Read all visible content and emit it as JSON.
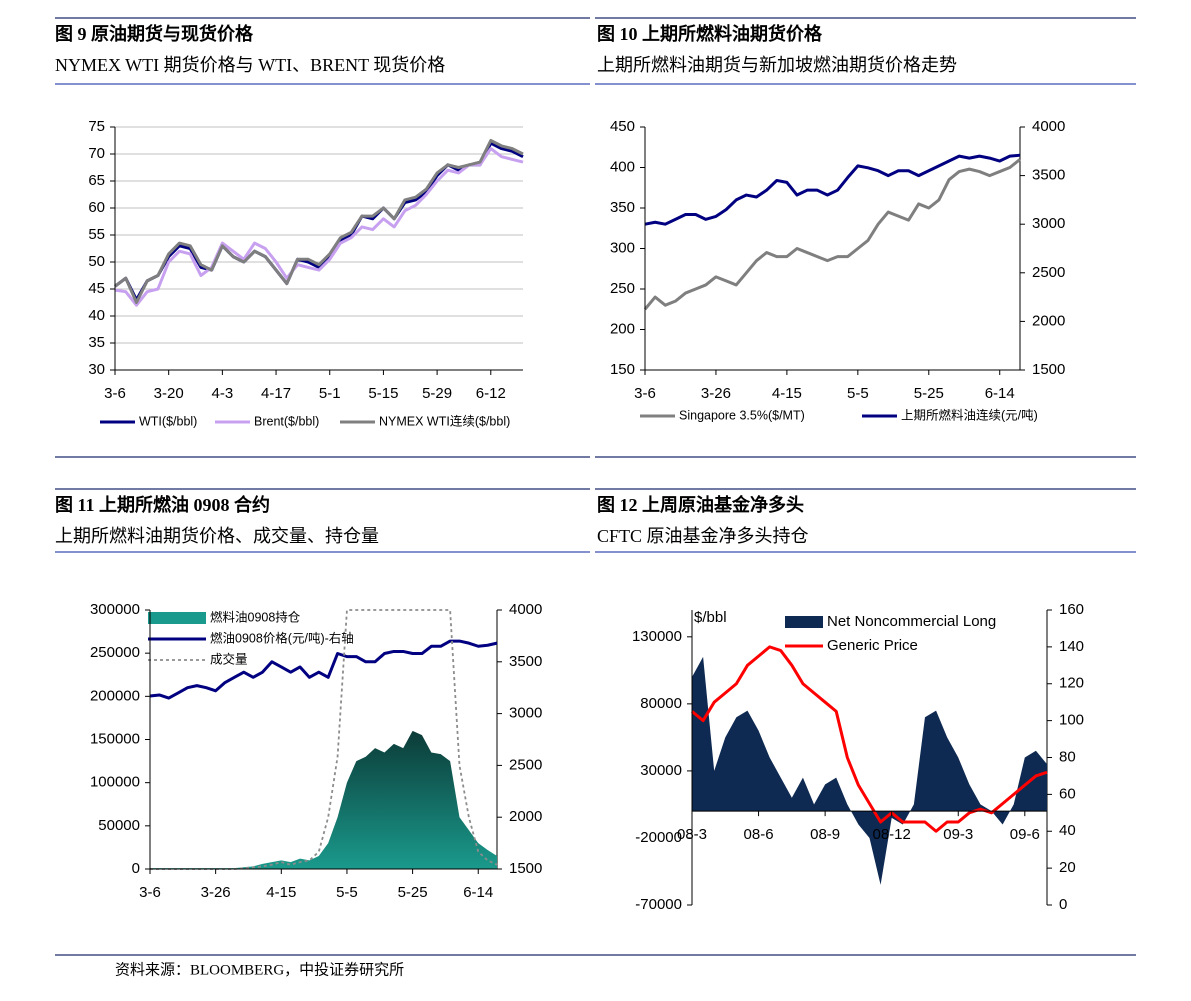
{
  "source": "资料来源：BLOOMBERG，中投证券研究所",
  "chart_data": [
    {
      "type": "line",
      "title": "图 9  原油期货与现货价格",
      "subtitle": "NYMEX WTI 期货价格与 WTI、BRENT 现货价格",
      "categories": [
        "3-6",
        null,
        null,
        null,
        null,
        "3-20",
        null,
        null,
        null,
        null,
        "4-3",
        null,
        null,
        null,
        null,
        "4-17",
        null,
        null,
        null,
        null,
        "5-1",
        null,
        null,
        null,
        null,
        "5-15",
        null,
        null,
        null,
        null,
        "5-29",
        null,
        null,
        null,
        null,
        "6-12",
        null,
        null,
        null
      ],
      "ylim": [
        30,
        75
      ],
      "yticks": [
        30,
        35,
        40,
        45,
        50,
        55,
        60,
        65,
        70,
        75
      ],
      "grid": true,
      "legend": "bottom",
      "series": [
        {
          "name": "WTI($/bbl)",
          "color": "#000080",
          "values": [
            45.5,
            47,
            43,
            46.5,
            47.5,
            51,
            53,
            52.5,
            49,
            48.5,
            53,
            51,
            50,
            52,
            51,
            48.5,
            46,
            50.5,
            50,
            49,
            51,
            54,
            55,
            58.5,
            58,
            60,
            58,
            61,
            61.5,
            63,
            66,
            68,
            67,
            68,
            68,
            72,
            71,
            70.5,
            69.5
          ]
        },
        {
          "name": "Brent($/bbl)",
          "color": "#c8a0f0",
          "values": [
            44.8,
            44.5,
            42,
            44.5,
            45,
            50,
            52,
            51.5,
            47.5,
            49,
            53.5,
            52,
            50.5,
            53.5,
            52.5,
            50,
            47,
            49.5,
            49,
            48.5,
            50.5,
            53.5,
            54.5,
            56.5,
            56,
            58,
            56.5,
            59.5,
            60.5,
            62.5,
            65,
            67,
            66.5,
            68,
            68,
            71,
            69.5,
            69,
            68.5
          ]
        },
        {
          "name": "NYMEX WTI连续($/bbl)",
          "color": "#7f7f7f",
          "values": [
            45.5,
            47,
            42.5,
            46.5,
            47.5,
            51.5,
            53.5,
            53,
            49.5,
            48.5,
            53,
            51,
            50,
            52,
            51,
            48.5,
            46,
            50.5,
            50.5,
            49.5,
            51.5,
            54.5,
            55.5,
            58.5,
            58.5,
            60,
            58,
            61.5,
            62,
            63.5,
            66.5,
            68,
            67.5,
            68,
            68.5,
            72.5,
            71.5,
            71,
            70
          ]
        }
      ]
    },
    {
      "type": "line",
      "title": "图 10  上期所燃料油期货价格",
      "subtitle": "上期所燃料油期货与新加坡燃油期货价格走势",
      "categories": [
        "3-6",
        null,
        null,
        null,
        null,
        null,
        null,
        "3-26",
        null,
        null,
        null,
        null,
        null,
        null,
        "4-15",
        null,
        null,
        null,
        null,
        null,
        null,
        "5-5",
        null,
        null,
        null,
        null,
        null,
        null,
        "5-25",
        null,
        null,
        null,
        null,
        null,
        null,
        "6-14",
        null,
        null
      ],
      "ylim": [
        150,
        450
      ],
      "yticks": [
        150,
        200,
        250,
        300,
        350,
        400,
        450
      ],
      "y2lim": [
        1500,
        4000
      ],
      "y2ticks": [
        1500,
        2000,
        2500,
        3000,
        3500,
        4000
      ],
      "grid": false,
      "legend": "bottom",
      "series": [
        {
          "name": "Singapore 3.5%($/MT)",
          "color": "#7f7f7f",
          "values": [
            225,
            240,
            230,
            235,
            245,
            250,
            255,
            265,
            260,
            255,
            270,
            285,
            295,
            290,
            290,
            300,
            295,
            290,
            285,
            290,
            290,
            300,
            310,
            330,
            345,
            340,
            335,
            355,
            350,
            360,
            385,
            395,
            398,
            395,
            390,
            395,
            400,
            410
          ]
        },
        {
          "name": "上期所燃料油连续(元/吨)",
          "color": "#000080",
          "axis": "y2",
          "values": [
            3000,
            3020,
            3000,
            3050,
            3100,
            3100,
            3050,
            3080,
            3150,
            3250,
            3300,
            3280,
            3350,
            3450,
            3430,
            3300,
            3350,
            3350,
            3300,
            3350,
            3480,
            3600,
            3580,
            3550,
            3500,
            3550,
            3550,
            3500,
            3550,
            3600,
            3650,
            3700,
            3680,
            3700,
            3680,
            3650,
            3700,
            3710
          ]
        }
      ]
    },
    {
      "type": "combo",
      "title": "图 11  上期所燃油 0908 合约",
      "subtitle": "上期所燃料油期货价格、成交量、持仓量",
      "categories": [
        "3-6",
        null,
        null,
        null,
        null,
        null,
        null,
        "3-26",
        null,
        null,
        null,
        null,
        null,
        null,
        "4-15",
        null,
        null,
        null,
        null,
        null,
        null,
        "5-5",
        null,
        null,
        null,
        null,
        null,
        null,
        "5-25",
        null,
        null,
        null,
        null,
        null,
        null,
        "6-14",
        null,
        null
      ],
      "ylim": [
        0,
        300000
      ],
      "yticks": [
        0,
        50000,
        100000,
        150000,
        200000,
        250000,
        300000
      ],
      "y2lim": [
        1500,
        4000
      ],
      "y2ticks": [
        1500,
        2000,
        2500,
        3000,
        3500,
        4000
      ],
      "grid": false,
      "legend": "upper left",
      "series": [
        {
          "name": "燃料油0908持仓",
          "color": "#1a9a8c",
          "mark": "area",
          "values": [
            1000,
            1000,
            1000,
            1000,
            1000,
            1000,
            1000,
            1000,
            1000,
            1000,
            2000,
            3000,
            6000,
            8000,
            10000,
            8000,
            12000,
            10000,
            15000,
            30000,
            60000,
            100000,
            125000,
            130000,
            140000,
            135000,
            145000,
            140000,
            160000,
            155000,
            135000,
            133000,
            125000,
            60000,
            45000,
            30000,
            22000,
            15000
          ]
        },
        {
          "name": "燃油0908价格(元/吨)-右轴",
          "color": "#000080",
          "axis": "y2",
          "values": [
            3170,
            3180,
            3150,
            3200,
            3250,
            3270,
            3250,
            3220,
            3300,
            3350,
            3400,
            3350,
            3400,
            3500,
            3450,
            3400,
            3450,
            3350,
            3400,
            3350,
            3580,
            3550,
            3550,
            3500,
            3500,
            3580,
            3600,
            3600,
            3580,
            3580,
            3650,
            3650,
            3700,
            3700,
            3680,
            3650,
            3660,
            3680
          ]
        },
        {
          "name": "成交量",
          "color": "#8c8c8c",
          "dash": true,
          "values": [
            0,
            0,
            0,
            0,
            0,
            0,
            0,
            0,
            0,
            0,
            1000,
            2000,
            3000,
            5000,
            8000,
            5000,
            8000,
            10000,
            20000,
            60000,
            130000,
            300000,
            300000,
            300000,
            300000,
            300000,
            300000,
            300000,
            300000,
            300000,
            300000,
            300000,
            300000,
            120000,
            60000,
            20000,
            10000,
            5000
          ]
        }
      ]
    },
    {
      "type": "combo",
      "title": "图 12  上周原油基金净多头",
      "subtitle": "CFTC  原油基金净多头持仓",
      "ylabel": "$/bbl",
      "categories": [
        "08-3",
        null,
        null,
        null,
        null,
        null,
        "08-6",
        null,
        null,
        null,
        null,
        null,
        "08-9",
        null,
        null,
        null,
        null,
        null,
        "08-12",
        null,
        null,
        null,
        null,
        null,
        "09-3",
        null,
        null,
        null,
        null,
        null,
        "09-6",
        null,
        null
      ],
      "ylim": [
        -70000,
        150000
      ],
      "yticks": [
        -70000,
        -20000,
        30000,
        80000,
        130000
      ],
      "y2lim": [
        0,
        160
      ],
      "y2ticks": [
        0,
        20,
        40,
        60,
        80,
        100,
        120,
        140,
        160
      ],
      "grid": false,
      "legend": "upper center",
      "series": [
        {
          "name": "Net Noncommercial Long",
          "color": "#0f2a52",
          "mark": "area",
          "values": [
            100000,
            115000,
            30000,
            55000,
            70000,
            75000,
            60000,
            40000,
            25000,
            10000,
            25000,
            5000,
            20000,
            25000,
            5000,
            -10000,
            -20000,
            -55000,
            -5000,
            -10000,
            5000,
            70000,
            75000,
            55000,
            40000,
            20000,
            5000,
            0,
            -10000,
            5000,
            40000,
            45000,
            35000
          ]
        },
        {
          "name": "Generic Price",
          "color": "#ff0000",
          "axis": "y2",
          "values": [
            105,
            100,
            110,
            115,
            120,
            130,
            135,
            140,
            138,
            130,
            120,
            115,
            110,
            105,
            80,
            65,
            55,
            45,
            50,
            45,
            45,
            45,
            40,
            45,
            45,
            50,
            52,
            50,
            55,
            60,
            65,
            70,
            72
          ]
        }
      ]
    }
  ]
}
